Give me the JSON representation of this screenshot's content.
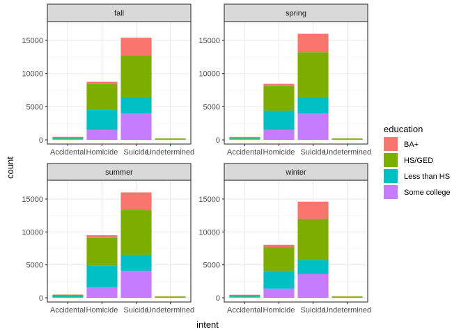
{
  "chart_data": {
    "type": "bar",
    "stacked": true,
    "xlabel": "intent",
    "ylabel": "count",
    "ylim": [
      0,
      17000
    ],
    "yticks": [
      0,
      5000,
      10000,
      15000
    ],
    "ytick_labels": [
      "0",
      "5000",
      "10000",
      "15000"
    ],
    "grid": true,
    "legend": {
      "title": "education",
      "position": "right",
      "entries": [
        "BA+",
        "HS/GED",
        "Less than HS",
        "Some college"
      ],
      "colors": [
        "#F8766D",
        "#7CAE00",
        "#00BFC4",
        "#C77CFF"
      ]
    },
    "categories": [
      "Accidental",
      "Homicide",
      "Suicide",
      "Undetermined"
    ],
    "panels": [
      {
        "name": "fall",
        "series": [
          {
            "name": "Some college",
            "values": [
              90,
              1500,
              4000,
              60
            ]
          },
          {
            "name": "Less than HS",
            "values": [
              150,
              3000,
              2400,
              60
            ]
          },
          {
            "name": "HS/GED",
            "values": [
              170,
              3900,
              6300,
              90
            ]
          },
          {
            "name": "BA+",
            "values": [
              40,
              350,
              2700,
              30
            ]
          }
        ]
      },
      {
        "name": "spring",
        "series": [
          {
            "name": "Some college",
            "values": [
              90,
              1500,
              4000,
              60
            ]
          },
          {
            "name": "Less than HS",
            "values": [
              140,
              2900,
              2400,
              60
            ]
          },
          {
            "name": "HS/GED",
            "values": [
              170,
              3700,
              6800,
              90
            ]
          },
          {
            "name": "BA+",
            "values": [
              40,
              350,
              2800,
              30
            ]
          }
        ]
      },
      {
        "name": "summer",
        "series": [
          {
            "name": "Some college",
            "values": [
              100,
              1600,
              4100,
              60
            ]
          },
          {
            "name": "Less than HS",
            "values": [
              170,
              3300,
              2400,
              60
            ]
          },
          {
            "name": "HS/GED",
            "values": [
              190,
              4200,
              6800,
              90
            ]
          },
          {
            "name": "BA+",
            "values": [
              40,
              400,
              2700,
              30
            ]
          }
        ]
      },
      {
        "name": "winter",
        "series": [
          {
            "name": "Some college",
            "values": [
              90,
              1400,
              3600,
              60
            ]
          },
          {
            "name": "Less than HS",
            "values": [
              150,
              2700,
              2100,
              60
            ]
          },
          {
            "name": "HS/GED",
            "values": [
              180,
              3600,
              6300,
              90
            ]
          },
          {
            "name": "BA+",
            "values": [
              40,
              350,
              2600,
              30
            ]
          }
        ]
      }
    ]
  }
}
